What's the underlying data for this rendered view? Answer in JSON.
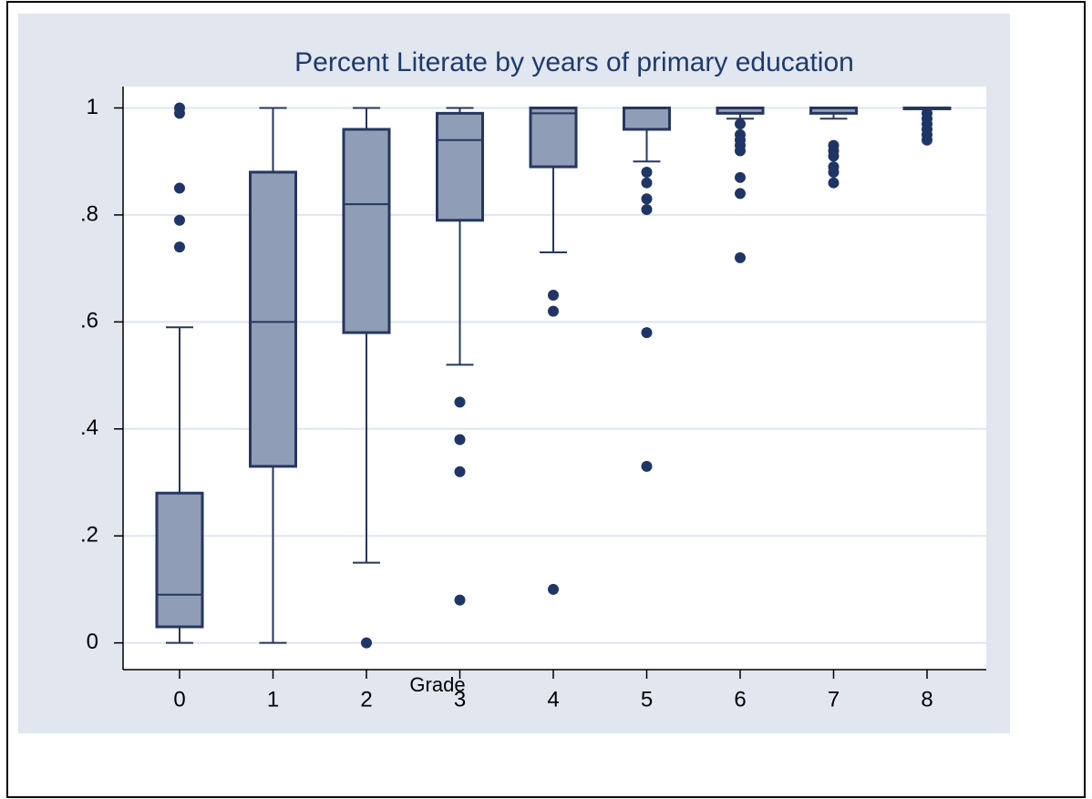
{
  "chart_data": {
    "type": "box",
    "title": "Percent Literate by years of primary education",
    "x_label": "Grade",
    "categories": [
      "0",
      "1",
      "2",
      "3",
      "4",
      "5",
      "6",
      "7",
      "8"
    ],
    "boxes": [
      {
        "whislo": 0,
        "q1": 0.03,
        "med": 0.09,
        "q3": 0.28,
        "whishi": 0.59,
        "fliers": [
          0.74,
          0.79,
          0.85,
          0.99,
          1.0
        ]
      },
      {
        "whislo": 0,
        "q1": 0.33,
        "med": 0.6,
        "q3": 0.88,
        "whishi": 1.0,
        "fliers": []
      },
      {
        "whislo": 0.15,
        "q1": 0.58,
        "med": 0.82,
        "q3": 0.96,
        "whishi": 1.0,
        "fliers": [
          0
        ]
      },
      {
        "whislo": 0.52,
        "q1": 0.79,
        "med": 0.94,
        "q3": 0.99,
        "whishi": 1.0,
        "fliers": [
          0.45,
          0.38,
          0.32,
          0.08
        ]
      },
      {
        "whislo": 0.73,
        "q1": 0.89,
        "med": 0.99,
        "q3": 1.0,
        "whishi": 1.0,
        "fliers": [
          0.65,
          0.62,
          0.1
        ]
      },
      {
        "whislo": 0.9,
        "q1": 0.96,
        "med": 1.0,
        "q3": 1.0,
        "whishi": 1.0,
        "fliers": [
          0.88,
          0.86,
          0.83,
          0.81,
          0.58,
          0.33
        ]
      },
      {
        "whislo": 0.98,
        "q1": 0.99,
        "med": 1.0,
        "q3": 1.0,
        "whishi": 1.0,
        "fliers": [
          0.97,
          0.95,
          0.94,
          0.93,
          0.92,
          0.87,
          0.84,
          0.72
        ]
      },
      {
        "whislo": 0.98,
        "q1": 0.99,
        "med": 1.0,
        "q3": 1.0,
        "whishi": 1.0,
        "fliers": [
          0.93,
          0.92,
          0.91,
          0.89,
          0.88,
          0.86
        ]
      },
      {
        "whislo": 1.0,
        "q1": 1.0,
        "med": 1.0,
        "q3": 1.0,
        "whishi": 1.0,
        "fliers": [
          0.99,
          0.98,
          0.97,
          0.96,
          0.95,
          0.94
        ]
      }
    ],
    "box_color": "#8f9db6",
    "line_color": "#26375e",
    "flier_color": "#1f3566",
    "ylim": [
      -0.05,
      1.04
    ],
    "yticks": [
      0,
      {
        "value": 0.2,
        "label": ".2"
      },
      {
        "value": 0.4,
        "label": ".4"
      },
      {
        "value": 0.6,
        "label": ".6"
      },
      {
        "value": 0.8,
        "label": ".8"
      },
      1
    ],
    "grid": true
  }
}
